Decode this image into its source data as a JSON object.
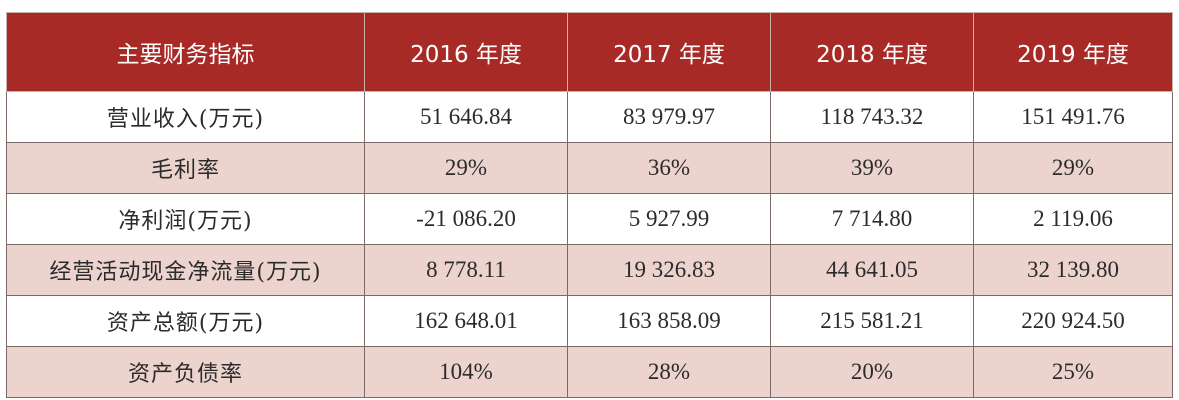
{
  "table": {
    "headers": [
      "主要财务指标",
      "2016 年度",
      "2017 年度",
      "2018 年度",
      "2019 年度"
    ],
    "rows": [
      {
        "label": "营业收入(万元)",
        "values": [
          "51 646.84",
          "83 979.97",
          "118 743.32",
          "151 491.76"
        ]
      },
      {
        "label": "毛利率",
        "values": [
          "29%",
          "36%",
          "39%",
          "29%"
        ]
      },
      {
        "label": "净利润(万元)",
        "values": [
          "-21 086.20",
          "5 927.99",
          "7 714.80",
          "2 119.06"
        ]
      },
      {
        "label": "经营活动现金净流量(万元)",
        "values": [
          "8 778.11",
          "19 326.83",
          "44 641.05",
          "32 139.80"
        ]
      },
      {
        "label": "资产总额(万元)",
        "values": [
          "162 648.01",
          "163 858.09",
          "215 581.21",
          "220 924.50"
        ]
      },
      {
        "label": "资产负债率",
        "values": [
          "104%",
          "28%",
          "20%",
          "25%"
        ]
      }
    ]
  },
  "colors": {
    "header_bg": "#a82a26",
    "header_text": "#ffffff",
    "stripe_bg": "#ecd3cd",
    "border": "#7a6a66"
  }
}
